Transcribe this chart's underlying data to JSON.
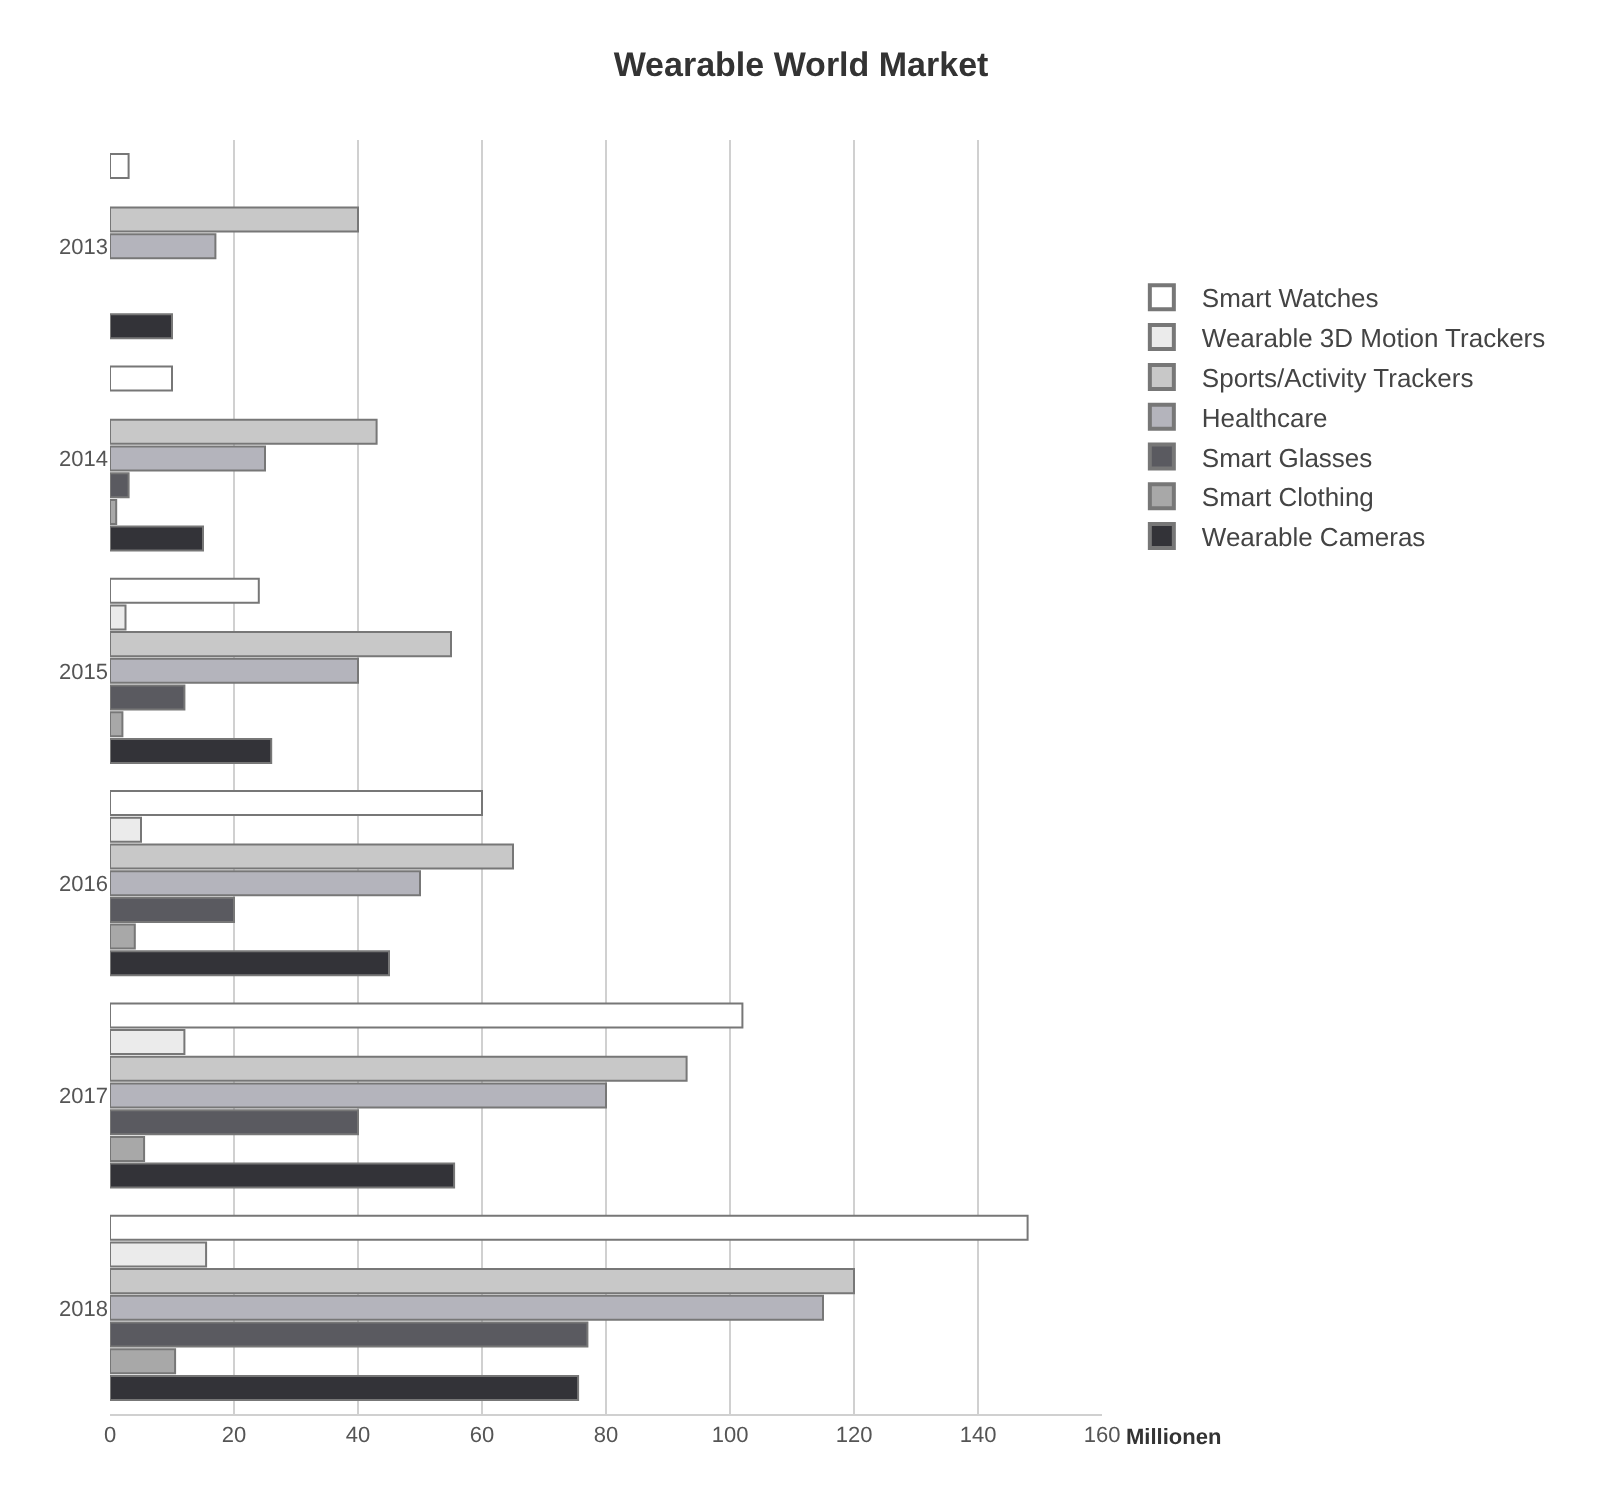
{
  "chart_data": {
    "type": "bar",
    "orientation": "horizontal",
    "title": "Wearable World Market",
    "xlabel": "Millionen",
    "categories": [
      "2013",
      "2014",
      "2015",
      "2016",
      "2017",
      "2018"
    ],
    "series": [
      {
        "name": "Smart Watches",
        "color": "#ffffff",
        "values": [
          3,
          10,
          24,
          60,
          102,
          148
        ]
      },
      {
        "name": "Wearable 3D Motion Trackers",
        "color": "#ebebeb",
        "values": [
          null,
          null,
          2.5,
          5,
          12,
          15.5
        ]
      },
      {
        "name": "Sports/Activity Trackers",
        "color": "#c8c8c8",
        "values": [
          40,
          43,
          55,
          65,
          93,
          120
        ]
      },
      {
        "name": "Healthcare",
        "color": "#b4b4bc",
        "values": [
          17,
          25,
          40,
          50,
          80,
          115
        ]
      },
      {
        "name": "Smart Glasses",
        "color": "#5a5a60",
        "values": [
          null,
          3,
          12,
          20,
          40,
          77
        ]
      },
      {
        "name": "Smart Clothing",
        "color": "#a8a8a8",
        "values": [
          null,
          1,
          2,
          4,
          5.5,
          10.5
        ]
      },
      {
        "name": "Wearable Cameras",
        "color": "#333338",
        "values": [
          10,
          15,
          26,
          45,
          55.5,
          75.5
        ]
      }
    ],
    "xlim": [
      0,
      160
    ],
    "xticks": [
      0,
      20,
      40,
      60,
      80,
      100,
      120,
      140,
      160
    ],
    "grid": "x",
    "legend": "right"
  }
}
